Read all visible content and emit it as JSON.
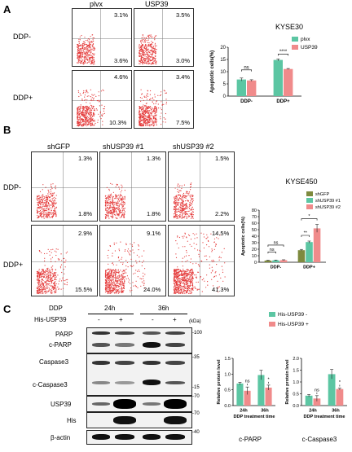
{
  "panelA": {
    "letter": "A",
    "col_titles": [
      "plvx",
      "USP39"
    ],
    "row_labels": [
      "DDP-",
      "DDP+"
    ],
    "top_pct": [
      [
        "3.1%",
        "3.5%"
      ],
      [
        "4.6%",
        "3.4%"
      ]
    ],
    "bottom_pct": [
      [
        "3.6%",
        "3.0%"
      ],
      [
        "10.3%",
        "7.5%"
      ]
    ]
  },
  "panelB": {
    "letter": "B",
    "col_titles": [
      "shGFP",
      "shUSP39 #1",
      "shUSP39 #2"
    ],
    "row_labels": [
      "DDP-",
      "DDP+"
    ],
    "top_pct": [
      [
        "1.3%",
        "1.3%",
        "1.5%"
      ],
      [
        "2.9%",
        "9.1%",
        "14.5%"
      ]
    ],
    "bottom_pct": [
      [
        "1.8%",
        "1.8%",
        "2.2%"
      ],
      [
        "15.5%",
        "24.0%",
        "41.3%"
      ]
    ]
  },
  "panelC": {
    "letter": "C",
    "header_ddp": "DDP",
    "header_his": "His-USP39",
    "time_labels": [
      "24h",
      "36h"
    ],
    "signs": [
      "-",
      "+",
      "-",
      "+"
    ],
    "kda": "(kDa)",
    "proteins": [
      "PARP",
      "c-PARP",
      "Caspase3",
      "c-Caspase3",
      "USP39",
      "His",
      "β-actin"
    ],
    "markers": [
      "-100",
      "-35",
      "-15",
      "-70",
      "-70",
      "-40"
    ]
  },
  "chart_data": [
    {
      "type": "bar",
      "title": "KYSE30",
      "categories": [
        "DDP-",
        "DDP+"
      ],
      "ylabel": "Apoptotic cells(%)",
      "ylim": [
        0,
        20
      ],
      "yticks": [
        "0",
        "5",
        "10",
        "15",
        "20"
      ],
      "series": [
        {
          "name": "plvx",
          "values": [
            6.8,
            14.8
          ],
          "errors": [
            0.6,
            0.4
          ],
          "color": "#5cc6a3"
        },
        {
          "name": "USP39",
          "values": [
            6.4,
            11.1
          ],
          "errors": [
            0.3,
            0.2
          ],
          "color": "#f08b8b"
        }
      ],
      "significance": [
        "ns",
        "****"
      ],
      "legend": "right"
    },
    {
      "type": "bar",
      "title": "KYSE450",
      "categories": [
        "DDP-",
        "DDP+"
      ],
      "ylabel": "Apoptotic cells(%)",
      "ylim": [
        0,
        80
      ],
      "yticks": [
        "0",
        "10",
        "20",
        "30",
        "40",
        "50",
        "60",
        "70",
        "80"
      ],
      "series": [
        {
          "name": "shGFP",
          "values": [
            2.6,
            18.5
          ],
          "errors": [
            0.5,
            1.2
          ],
          "color": "#7e8a3e"
        },
        {
          "name": "shUSP39 #1",
          "values": [
            2.9,
            31.0
          ],
          "errors": [
            0.5,
            1.5
          ],
          "color": "#5cc6a3"
        },
        {
          "name": "shUSP39 #2",
          "values": [
            3.2,
            52.0
          ],
          "errors": [
            0.6,
            6.0
          ],
          "color": "#f08b8b"
        }
      ],
      "significance": [
        "ns",
        "ns",
        "**",
        "*"
      ],
      "legend": "top-right"
    },
    {
      "type": "bar",
      "title": "c-PARP",
      "categories": [
        "24h",
        "36h"
      ],
      "xlabel": "DDP treatment time",
      "ylabel": "Relative protein level",
      "ylim": [
        0,
        1.5
      ],
      "yticks": [
        "0.0",
        "0.5",
        "1.0",
        "1.5"
      ],
      "series": [
        {
          "name": "His-USP39 -",
          "values": [
            0.7,
            0.97
          ],
          "errors": [
            0.04,
            0.15
          ],
          "color": "#5cc6a3"
        },
        {
          "name": "His-USP39 +",
          "values": [
            0.47,
            0.57
          ],
          "errors": [
            0.12,
            0.08
          ],
          "color": "#f08b8b"
        }
      ],
      "significance": [
        "ns",
        "*"
      ]
    },
    {
      "type": "bar",
      "title": "c-Caspase3",
      "categories": [
        "24h",
        "36h"
      ],
      "xlabel": "DDP treatment time",
      "ylabel": "Relative protein level",
      "ylim": [
        0,
        2.0
      ],
      "yticks": [
        "0.0",
        "0.5",
        "1.0",
        "1.5",
        "2.0"
      ],
      "series": [
        {
          "name": "His-USP39 -",
          "values": [
            0.42,
            1.33
          ],
          "errors": [
            0.05,
            0.2
          ],
          "color": "#5cc6a3"
        },
        {
          "name": "His-USP39 +",
          "values": [
            0.3,
            0.7
          ],
          "errors": [
            0.12,
            0.04
          ],
          "color": "#f08b8b"
        }
      ],
      "significance": [
        "ns",
        "*"
      ],
      "legend": "top-right"
    }
  ]
}
